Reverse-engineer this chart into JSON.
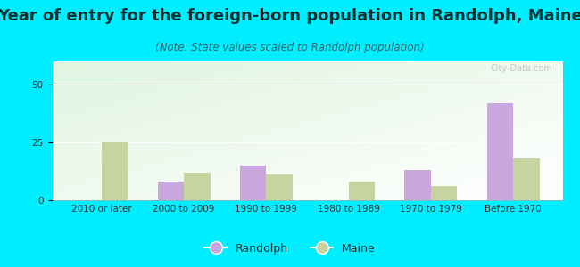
{
  "title": "Year of entry for the foreign-born population in Randolph, Maine",
  "subtitle": "(Note: State values scaled to Randolph population)",
  "categories": [
    "2010 or later",
    "2000 to 2009",
    "1990 to 1999",
    "1980 to 1989",
    "1970 to 1979",
    "Before 1970"
  ],
  "randolph": [
    0,
    8,
    15,
    0,
    13,
    42
  ],
  "maine": [
    25,
    12,
    11,
    8,
    6,
    18
  ],
  "randolph_color": "#c9a8e0",
  "maine_color": "#c8d4a0",
  "background_color": "#00eeff",
  "ylim": [
    0,
    60
  ],
  "yticks": [
    0,
    25,
    50
  ],
  "bar_width": 0.32,
  "title_fontsize": 13,
  "subtitle_fontsize": 8.5,
  "tick_fontsize": 7.5,
  "legend_fontsize": 9
}
